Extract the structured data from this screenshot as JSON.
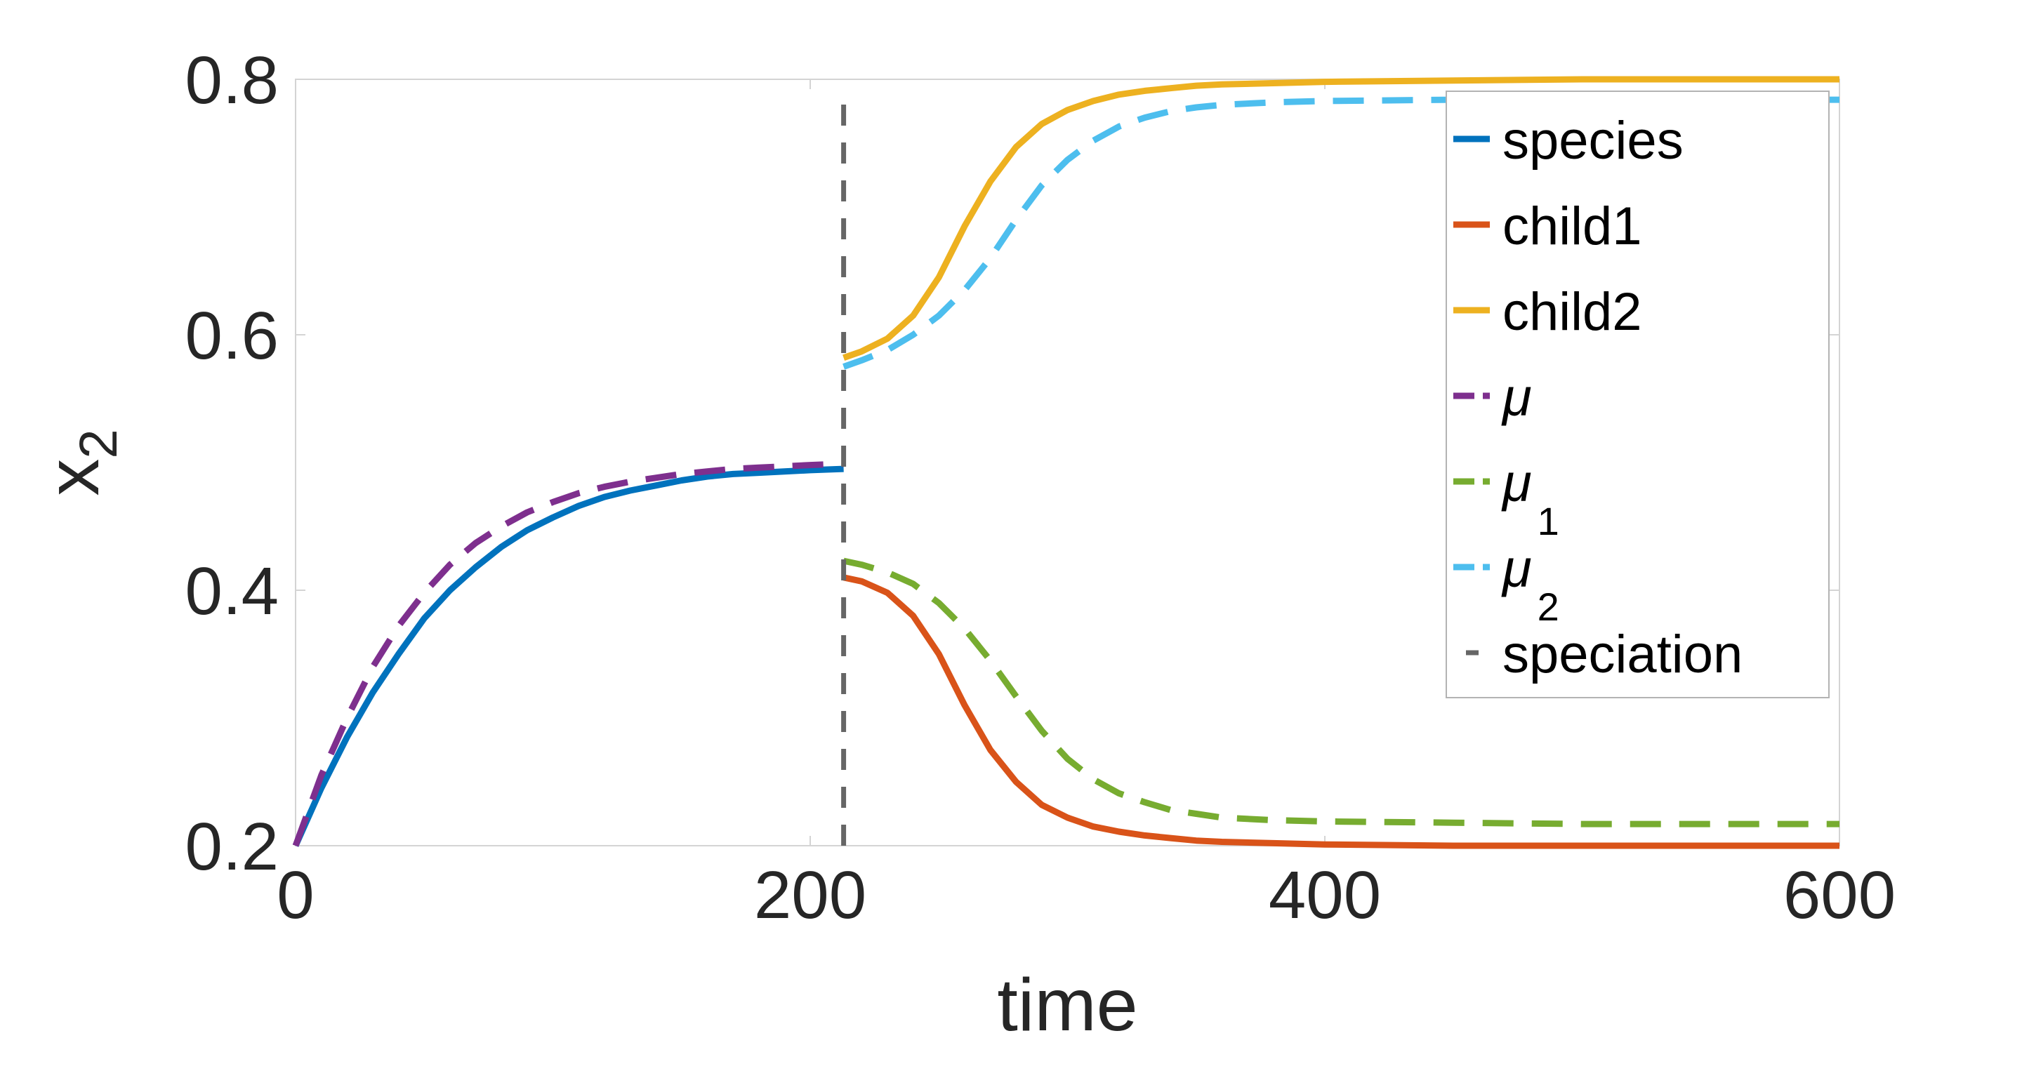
{
  "chart_data": {
    "type": "line",
    "title": "",
    "xlabel": "time",
    "ylabel": {
      "base": "x",
      "sub": "2"
    },
    "xlim": [
      0,
      600
    ],
    "ylim": [
      0.2,
      0.8
    ],
    "xticks": [
      0,
      200,
      400,
      600
    ],
    "yticks": [
      0.2,
      0.4,
      0.6,
      0.8
    ],
    "xtick_labels": [
      "0",
      "200",
      "400",
      "600"
    ],
    "ytick_labels": [
      "0.2",
      "0.4",
      "0.6",
      "0.8"
    ],
    "grid": false,
    "legend_position": "top-right",
    "speciation_time": 213,
    "series": [
      {
        "name": "species",
        "label": "species",
        "color": "#0072BD",
        "style": "solid",
        "x": [
          0,
          10,
          20,
          30,
          40,
          50,
          60,
          70,
          80,
          90,
          100,
          110,
          120,
          130,
          140,
          150,
          160,
          170,
          180,
          190,
          200,
          213
        ],
        "y": [
          0.2,
          0.245,
          0.285,
          0.32,
          0.35,
          0.378,
          0.4,
          0.418,
          0.434,
          0.447,
          0.457,
          0.466,
          0.473,
          0.478,
          0.482,
          0.486,
          0.489,
          0.491,
          0.492,
          0.493,
          0.494,
          0.495
        ]
      },
      {
        "name": "child1",
        "label": "child1",
        "color": "#D95319",
        "style": "solid",
        "x": [
          213,
          220,
          230,
          240,
          250,
          260,
          270,
          280,
          290,
          300,
          310,
          320,
          330,
          340,
          350,
          360,
          380,
          400,
          450,
          500,
          550,
          600
        ],
        "y": [
          0.41,
          0.407,
          0.398,
          0.38,
          0.35,
          0.31,
          0.275,
          0.25,
          0.232,
          0.222,
          0.215,
          0.211,
          0.208,
          0.206,
          0.204,
          0.203,
          0.202,
          0.201,
          0.2,
          0.2,
          0.2,
          0.2
        ]
      },
      {
        "name": "child2",
        "label": "child2",
        "color": "#EDB120",
        "style": "solid",
        "x": [
          213,
          220,
          230,
          240,
          250,
          260,
          270,
          280,
          290,
          300,
          310,
          320,
          330,
          340,
          350,
          360,
          380,
          400,
          450,
          500,
          550,
          600
        ],
        "y": [
          0.582,
          0.587,
          0.597,
          0.615,
          0.645,
          0.685,
          0.72,
          0.747,
          0.765,
          0.776,
          0.783,
          0.788,
          0.791,
          0.793,
          0.795,
          0.796,
          0.797,
          0.798,
          0.799,
          0.8,
          0.8,
          0.8
        ]
      },
      {
        "name": "mu",
        "label": "μ",
        "sub": "",
        "color": "#7E2F8E",
        "style": "dashed",
        "x": [
          0,
          10,
          20,
          30,
          40,
          50,
          60,
          70,
          80,
          90,
          100,
          110,
          120,
          130,
          140,
          150,
          160,
          170,
          180,
          190,
          200,
          213
        ],
        "y": [
          0.2,
          0.255,
          0.3,
          0.34,
          0.372,
          0.398,
          0.42,
          0.437,
          0.45,
          0.461,
          0.469,
          0.476,
          0.481,
          0.485,
          0.488,
          0.491,
          0.493,
          0.495,
          0.496,
          0.497,
          0.498,
          0.499
        ]
      },
      {
        "name": "mu1",
        "label": "μ",
        "sub": "1",
        "color": "#77AC30",
        "style": "dashed",
        "x": [
          213,
          220,
          230,
          240,
          250,
          260,
          270,
          280,
          290,
          300,
          310,
          320,
          330,
          340,
          350,
          360,
          380,
          400,
          450,
          500,
          550,
          600
        ],
        "y": [
          0.423,
          0.42,
          0.414,
          0.405,
          0.39,
          0.37,
          0.345,
          0.317,
          0.29,
          0.268,
          0.252,
          0.241,
          0.234,
          0.228,
          0.225,
          0.222,
          0.22,
          0.219,
          0.218,
          0.217,
          0.217,
          0.217
        ]
      },
      {
        "name": "mu2",
        "label": "μ",
        "sub": "2",
        "color": "#4DBEEE",
        "style": "dashed",
        "x": [
          213,
          220,
          230,
          240,
          250,
          260,
          270,
          280,
          290,
          300,
          310,
          320,
          330,
          340,
          350,
          360,
          380,
          400,
          450,
          500,
          550,
          600
        ],
        "y": [
          0.575,
          0.58,
          0.588,
          0.6,
          0.615,
          0.635,
          0.66,
          0.69,
          0.717,
          0.737,
          0.752,
          0.763,
          0.77,
          0.775,
          0.778,
          0.78,
          0.782,
          0.783,
          0.784,
          0.784,
          0.784,
          0.784
        ]
      },
      {
        "name": "speciation",
        "label": "speciation",
        "color": "#666666",
        "style": "dashed-vertical",
        "x": [
          213,
          213
        ],
        "y": [
          0.2,
          0.787
        ]
      }
    ]
  }
}
